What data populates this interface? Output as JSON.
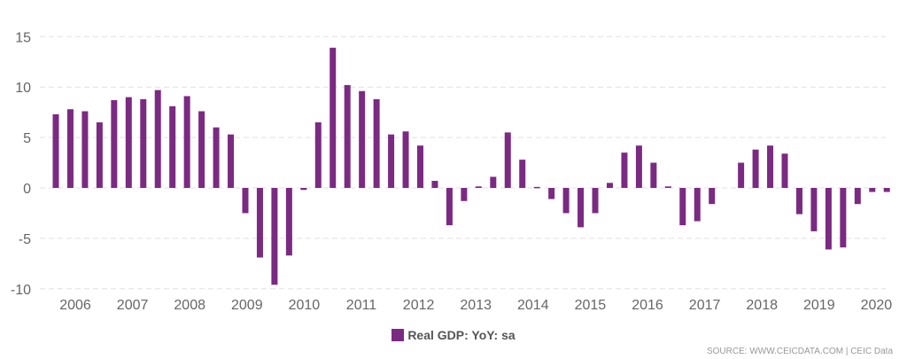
{
  "chart_data": {
    "type": "bar",
    "title": "",
    "xlabel": "",
    "ylabel": "",
    "ylim": [
      -10,
      15
    ],
    "yticks": [
      15,
      10,
      5,
      0,
      -5,
      -10
    ],
    "xticks": [
      "2006",
      "2007",
      "2008",
      "2009",
      "2010",
      "2011",
      "2012",
      "2013",
      "2014",
      "2015",
      "2016",
      "2017",
      "2018",
      "2019",
      "2020"
    ],
    "grid": true,
    "legend_position": "bottom",
    "series": [
      {
        "name": "Real GDP: YoY: sa",
        "color": "#7b2a82",
        "values": [
          7.3,
          7.8,
          7.6,
          6.5,
          8.7,
          9.0,
          8.8,
          9.7,
          8.1,
          9.1,
          7.6,
          6.0,
          5.3,
          -2.5,
          -6.9,
          -9.6,
          -6.7,
          -0.2,
          6.5,
          13.9,
          10.2,
          9.6,
          8.8,
          5.3,
          5.6,
          4.2,
          0.7,
          -3.7,
          -1.3,
          0.15,
          1.1,
          5.5,
          2.8,
          0.1,
          -1.1,
          -2.5,
          -3.9,
          -2.5,
          0.5,
          3.5,
          4.2,
          2.5,
          0.15,
          -3.7,
          -3.3,
          -1.6,
          0,
          2.5,
          3.8,
          4.2,
          3.4,
          -2.6,
          -4.3,
          -6.1,
          -5.9,
          -1.6,
          -0.4,
          -0.4
        ]
      }
    ]
  },
  "source": "SOURCE: WWW.CEICDATA.COM | CEIC Data"
}
